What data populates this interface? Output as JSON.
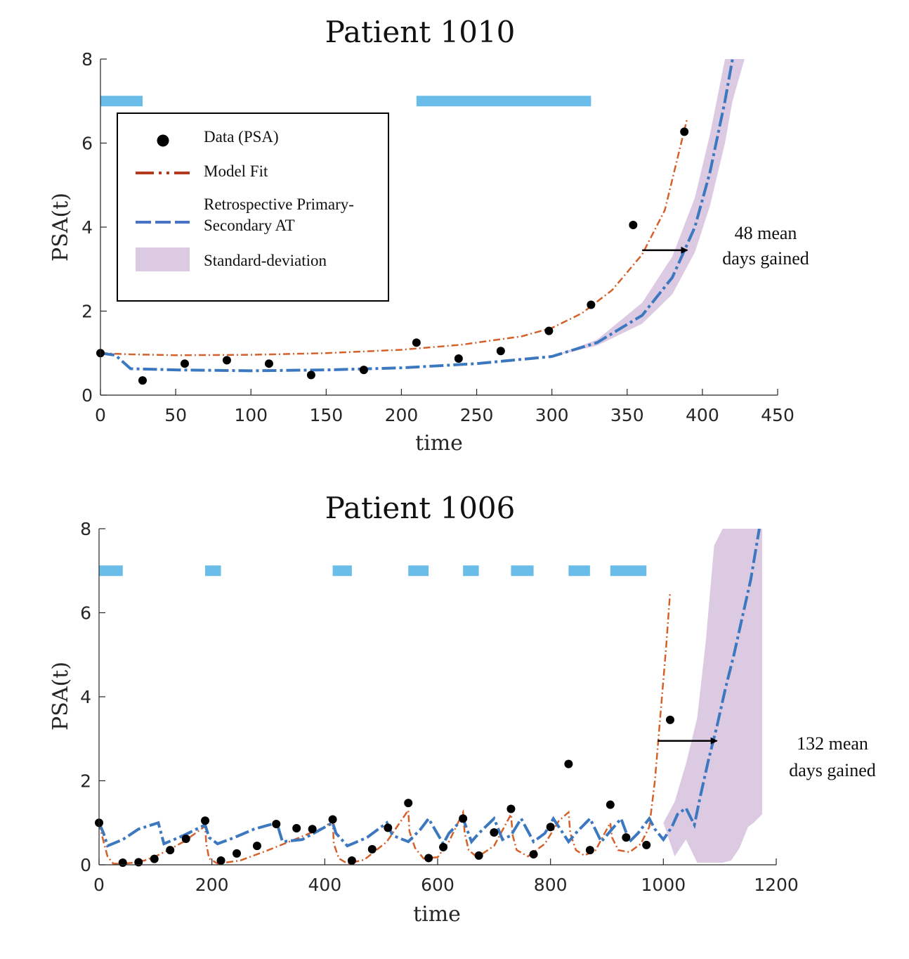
{
  "legend": {
    "data_label": "Data (PSA)",
    "model_label": "Model Fit",
    "retro_label_line1": "Retrospective Primary-",
    "retro_label_line2": "Secondary AT",
    "std_label": "Standard-deviation"
  },
  "colors": {
    "data": "#000000",
    "model": "#d4602a",
    "model_legend": "#b33a1e",
    "retro": "#3c78c0",
    "retro_legend": "#4a72c4",
    "std": "#dccae3",
    "treatment": "#69bde8"
  },
  "chart_data": [
    {
      "type": "line",
      "title": "Patient 1010",
      "xlabel": "time",
      "ylabel": "PSA(t)",
      "xlim": [
        0,
        450
      ],
      "ylim": [
        0,
        8
      ],
      "xticks": [
        0,
        50,
        100,
        150,
        200,
        250,
        300,
        350,
        400,
        450
      ],
      "yticks": [
        0,
        2,
        4,
        6,
        8
      ],
      "legend_position": "upper-left",
      "annotation": {
        "line1": "48 mean",
        "line2": "days gained",
        "arrow_from": [
          360,
          3.45
        ],
        "arrow_to": [
          390,
          3.45
        ]
      },
      "treatment_periods": [
        [
          0,
          28
        ],
        [
          210,
          326
        ]
      ],
      "treatment_level": 7,
      "data_points": {
        "x": [
          0,
          28,
          56,
          84,
          112,
          140,
          175,
          210,
          238,
          266,
          298,
          326,
          354,
          388
        ],
        "y": [
          1.0,
          0.35,
          0.75,
          0.83,
          0.75,
          0.48,
          0.6,
          1.25,
          0.87,
          1.05,
          1.53,
          2.15,
          4.05,
          6.27
        ]
      },
      "model_fit": {
        "x": [
          0,
          20,
          50,
          100,
          150,
          200,
          240,
          280,
          300,
          320,
          340,
          360,
          375,
          390
        ],
        "y": [
          1.0,
          0.97,
          0.95,
          0.96,
          1.0,
          1.08,
          1.2,
          1.4,
          1.6,
          1.95,
          2.5,
          3.35,
          4.4,
          6.6
        ]
      },
      "retrospective": {
        "x": [
          0,
          10,
          20,
          50,
          100,
          150,
          200,
          250,
          300,
          330,
          360,
          380,
          395,
          405,
          415,
          420
        ],
        "y": [
          1.0,
          0.95,
          0.63,
          0.6,
          0.58,
          0.6,
          0.65,
          0.75,
          0.92,
          1.25,
          1.9,
          2.8,
          4.0,
          5.3,
          7.0,
          8.0
        ]
      },
      "std_band": {
        "x": [
          300,
          330,
          360,
          380,
          395,
          405,
          415,
          420,
          428
        ],
        "lower": [
          0.92,
          1.18,
          1.7,
          2.4,
          3.4,
          4.5,
          6.0,
          7.0,
          8.0
        ],
        "upper": [
          0.92,
          1.32,
          2.2,
          3.3,
          4.7,
          6.2,
          8.0,
          8.0,
          8.0
        ]
      }
    },
    {
      "type": "line",
      "title": "Patient 1006",
      "xlabel": "time",
      "ylabel": "PSA(t)",
      "xlim": [
        0,
        1200
      ],
      "ylim": [
        0,
        8
      ],
      "xticks": [
        0,
        200,
        400,
        600,
        800,
        1000,
        1200
      ],
      "yticks": [
        0,
        2,
        4,
        6,
        8
      ],
      "annotation": {
        "line1": "132 mean",
        "line2": "days gained",
        "arrow_from": [
          990,
          2.95
        ],
        "arrow_to": [
          1095,
          2.95
        ]
      },
      "treatment_periods": [
        [
          0,
          42
        ],
        [
          188,
          216
        ],
        [
          414,
          448
        ],
        [
          548,
          584
        ],
        [
          645,
          673
        ],
        [
          730,
          770
        ],
        [
          832,
          870
        ],
        [
          906,
          970
        ]
      ],
      "treatment_level": 7,
      "data_points": {
        "x": [
          0,
          42,
          70,
          98,
          126,
          154,
          188,
          216,
          244,
          280,
          314,
          350,
          378,
          414,
          448,
          484,
          512,
          548,
          584,
          610,
          645,
          673,
          700,
          730,
          770,
          800,
          832,
          870,
          906,
          934,
          970,
          1012
        ],
        "y": [
          1.0,
          0.05,
          0.06,
          0.14,
          0.35,
          0.62,
          1.05,
          0.1,
          0.27,
          0.45,
          0.97,
          0.87,
          0.85,
          1.08,
          0.1,
          0.37,
          0.88,
          1.47,
          0.16,
          0.42,
          1.1,
          0.22,
          0.77,
          1.33,
          0.25,
          0.9,
          2.4,
          0.35,
          1.43,
          0.65,
          0.47,
          3.45
        ]
      },
      "model_fit": {
        "x": [
          0,
          8,
          15,
          25,
          40,
          60,
          80,
          100,
          120,
          150,
          188,
          190,
          195,
          210,
          250,
          300,
          350,
          400,
          414,
          416,
          425,
          440,
          470,
          510,
          548,
          550,
          560,
          575,
          600,
          620,
          645,
          648,
          655,
          670,
          700,
          730,
          733,
          740,
          760,
          790,
          815,
          832,
          835,
          845,
          860,
          880,
          906,
          909,
          920,
          940,
          960,
          975,
          985,
          995,
          1005,
          1012
        ],
        "y": [
          1.0,
          0.55,
          0.2,
          0.03,
          0.02,
          0.05,
          0.1,
          0.2,
          0.33,
          0.55,
          0.92,
          0.5,
          0.15,
          0.03,
          0.1,
          0.35,
          0.62,
          0.9,
          1.05,
          0.5,
          0.15,
          0.03,
          0.12,
          0.55,
          1.3,
          0.8,
          0.4,
          0.15,
          0.18,
          0.55,
          1.25,
          0.75,
          0.35,
          0.18,
          0.45,
          1.2,
          0.7,
          0.35,
          0.2,
          0.5,
          1.05,
          1.25,
          0.75,
          0.35,
          0.22,
          0.35,
          1.0,
          0.65,
          0.35,
          0.3,
          0.5,
          0.9,
          2.0,
          3.6,
          5.2,
          6.5
        ]
      },
      "retrospective": {
        "x": [
          0,
          8,
          15,
          42,
          70,
          105,
          115,
          150,
          188,
          195,
          210,
          240,
          275,
          315,
          325,
          360,
          414,
          420,
          440,
          475,
          510,
          520,
          548,
          570,
          584,
          610,
          620,
          645,
          660,
          673,
          700,
          715,
          730,
          748,
          770,
          790,
          805,
          832,
          848,
          870,
          890,
          906,
          925,
          940,
          955,
          975,
          985,
          1000,
          1015,
          1025,
          1040,
          1055,
          1065,
          1080,
          1095,
          1110,
          1125,
          1140,
          1155,
          1170
        ],
        "y": [
          1.0,
          0.75,
          0.45,
          0.6,
          0.85,
          1.0,
          0.5,
          0.7,
          0.95,
          0.65,
          0.5,
          0.65,
          0.85,
          1.0,
          0.55,
          0.6,
          1.0,
          0.75,
          0.45,
          0.65,
          1.0,
          0.7,
          0.55,
          0.85,
          1.1,
          0.5,
          0.75,
          1.1,
          0.55,
          0.75,
          1.1,
          0.6,
          0.7,
          1.1,
          0.55,
          0.75,
          1.1,
          0.55,
          0.8,
          1.1,
          0.55,
          0.8,
          1.1,
          0.55,
          0.75,
          1.1,
          0.85,
          0.6,
          0.9,
          1.2,
          1.35,
          0.95,
          1.6,
          2.5,
          3.3,
          4.2,
          5.0,
          5.9,
          6.8,
          8.0
        ]
      },
      "std_band": {
        "x": [
          1000,
          1020,
          1040,
          1060,
          1075,
          1090,
          1105,
          1120,
          1135,
          1150,
          1160,
          1175
        ],
        "lower": [
          1.0,
          0.2,
          0.6,
          0.05,
          0.05,
          0.05,
          0.05,
          0.1,
          0.4,
          0.9,
          1.0,
          1.2
        ],
        "upper": [
          1.0,
          1.5,
          2.4,
          3.5,
          5.3,
          7.6,
          8.0,
          8.0,
          8.0,
          8.0,
          8.0,
          8.0
        ]
      }
    }
  ]
}
